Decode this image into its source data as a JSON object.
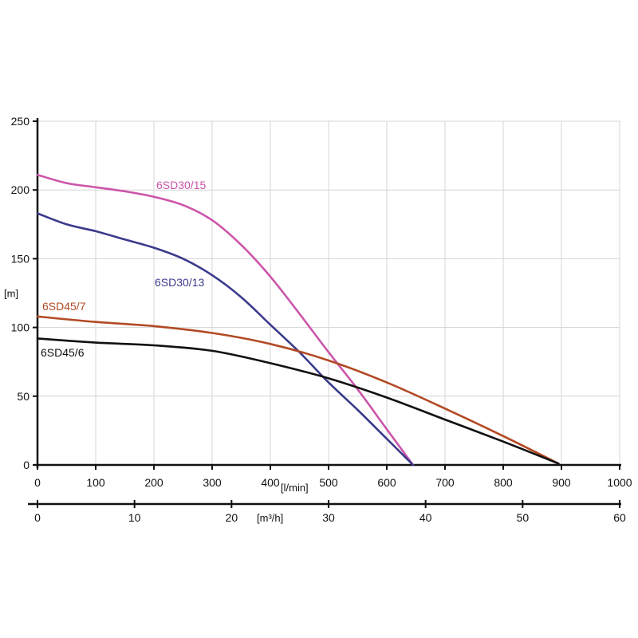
{
  "chart_data": {
    "type": "line",
    "xlabel": "[l/min]",
    "ylabel": "[m]",
    "xlim": [
      0,
      1000
    ],
    "ylim": [
      0,
      250
    ],
    "x_ticks": [
      0,
      100,
      200,
      300,
      400,
      500,
      600,
      700,
      800,
      900,
      1000
    ],
    "y_ticks": [
      0,
      50,
      100,
      150,
      200,
      250
    ],
    "secondary_x": {
      "label": "[m³/h]",
      "lim": [
        0,
        60
      ],
      "ticks": [
        0,
        10,
        20,
        30,
        40,
        50,
        60
      ]
    },
    "grid": true,
    "series": [
      {
        "name": "6SD30/15",
        "color": "#cc55aa",
        "x": [
          0,
          50,
          100,
          150,
          200,
          250,
          300,
          350,
          400,
          450,
          500,
          550,
          600,
          645
        ],
        "y": [
          211,
          205,
          202,
          199,
          195,
          189,
          178,
          160,
          137,
          110,
          82,
          55,
          26,
          0
        ]
      },
      {
        "name": "6SD30/13",
        "color": "#3a3a8c",
        "x": [
          0,
          50,
          100,
          150,
          200,
          250,
          300,
          350,
          400,
          450,
          500,
          550,
          600,
          645
        ],
        "y": [
          183,
          175,
          170,
          164,
          158,
          150,
          138,
          122,
          102,
          82,
          60,
          40,
          19,
          0
        ]
      },
      {
        "name": "6SD45/7",
        "color": "#b24a24",
        "x": [
          0,
          100,
          200,
          300,
          400,
          500,
          600,
          700,
          800,
          895
        ],
        "y": [
          108,
          104,
          101,
          96,
          88,
          76,
          60,
          41,
          21,
          1
        ]
      },
      {
        "name": "6SD45/6",
        "color": "#111111",
        "x": [
          0,
          100,
          200,
          300,
          400,
          500,
          600,
          700,
          800,
          895
        ],
        "y": [
          92,
          89,
          87,
          83,
          74,
          63,
          49,
          33,
          17,
          1
        ]
      }
    ]
  }
}
